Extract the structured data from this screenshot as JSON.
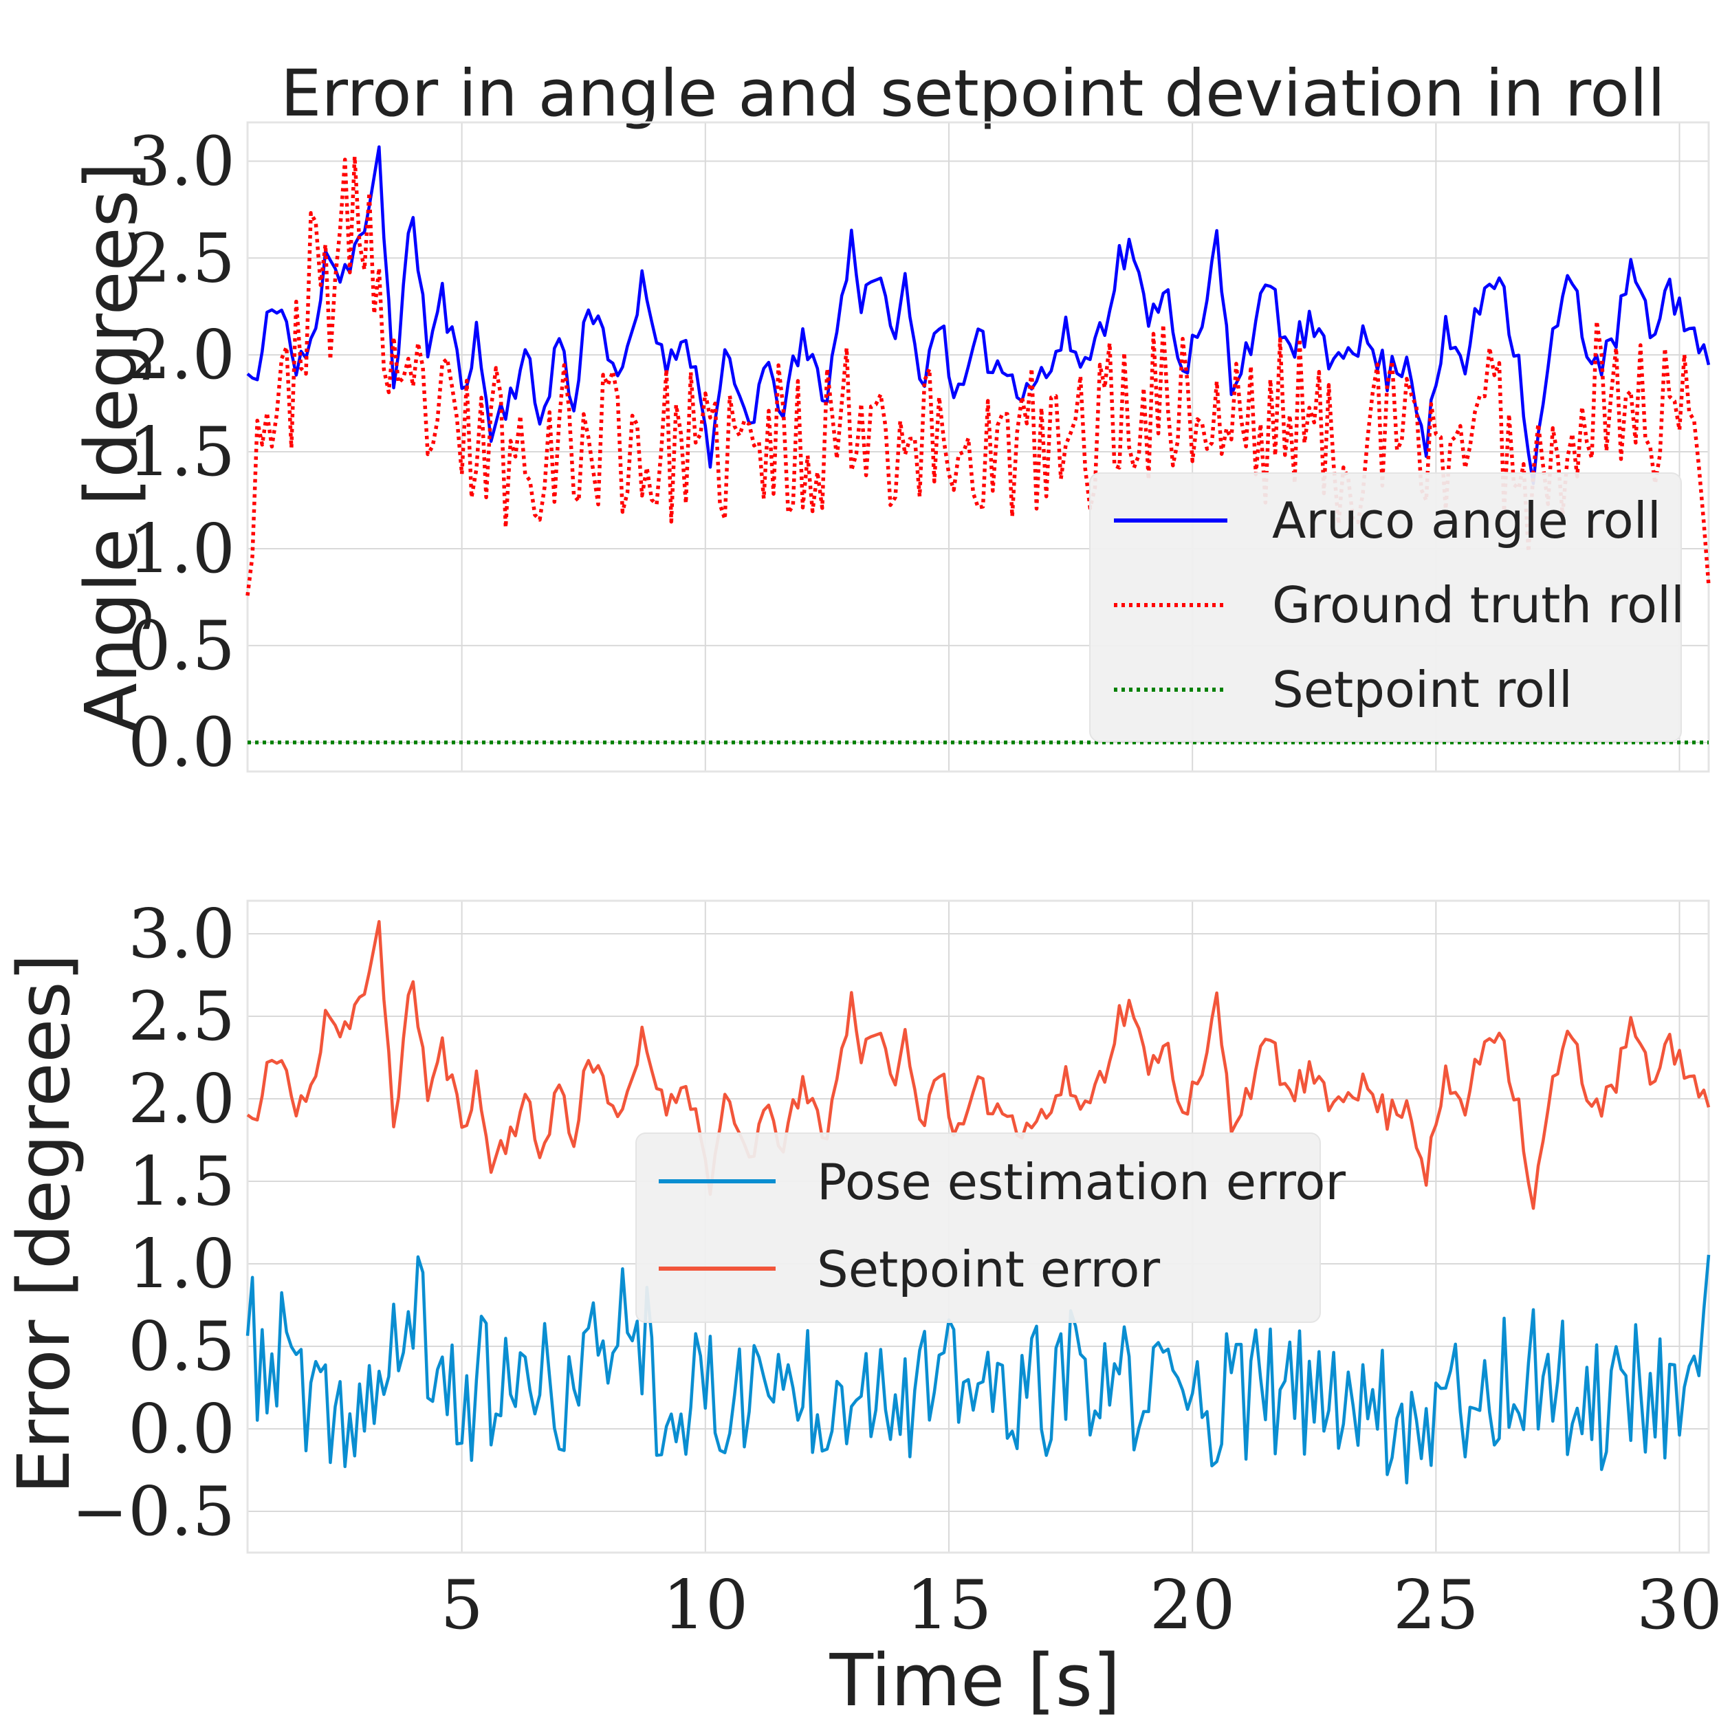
{
  "figure": {
    "title": "Error in angle and setpoint deviation in roll",
    "xlabel": "Time [s]"
  },
  "colors": {
    "aruco": "#0000ff",
    "ground_truth": "#ff0000",
    "setpoint": "#008000",
    "pose_error": "#0a8ed1",
    "setpoint_error": "#f2553a",
    "grid": "#d9d9d9",
    "legend_bg": "#f0f0f0"
  },
  "chart_data": [
    {
      "type": "line",
      "title": "Error in angle and setpoint deviation in roll",
      "xlabel": "",
      "ylabel": "Angle [degrees]",
      "xlim": [
        0.6,
        30.6
      ],
      "ylim": [
        -0.15,
        3.2
      ],
      "xticks": [
        5,
        10,
        15,
        20,
        25,
        30
      ],
      "yticks": [
        0.0,
        0.5,
        1.0,
        1.5,
        2.0,
        2.5,
        3.0
      ],
      "ytick_labels": [
        "0.0",
        "0.5",
        "1.0",
        "1.5",
        "2.0",
        "2.5",
        "3.0"
      ],
      "grid": true,
      "legend_position": "lower-right",
      "x": {
        "start": 0.6,
        "end": 30.6,
        "count": 301
      },
      "series": [
        {
          "name": "Aruco angle roll",
          "style": "solid",
          "color": "#0000ff",
          "anchors_x": [
            0.6,
            0.8,
            1.0,
            1.2,
            1.4,
            1.6,
            2.0,
            2.2,
            2.5,
            2.8,
            3.1,
            3.3,
            3.6,
            4.0,
            4.3,
            4.6,
            5.0,
            5.3,
            5.6,
            6.0,
            6.3,
            6.6,
            7.0,
            7.3,
            7.6,
            8.0,
            8.3,
            8.7,
            9.0,
            9.3,
            9.6,
            10.1,
            10.4,
            10.9,
            11.2,
            11.6,
            12.0,
            12.5,
            13.0,
            13.2,
            13.5,
            13.8,
            14.1,
            14.4,
            14.8,
            15.2,
            15.6,
            16.0,
            16.5,
            17.0,
            17.4,
            17.8,
            18.2,
            18.5,
            18.8,
            19.1,
            19.4,
            19.8,
            20.2,
            20.5,
            20.8,
            21.2,
            21.6,
            22.0,
            22.4,
            22.8,
            23.2,
            23.6,
            24.0,
            24.4,
            24.8,
            25.2,
            25.6,
            26.0,
            26.3,
            26.7,
            27.0,
            27.4,
            27.8,
            28.2,
            28.6,
            29.0,
            29.4,
            29.8,
            30.2,
            30.6
          ],
          "anchors_y": [
            1.9,
            1.85,
            2.15,
            2.3,
            2.15,
            1.9,
            2.1,
            2.6,
            2.4,
            2.55,
            2.7,
            3.02,
            1.88,
            2.75,
            2.02,
            2.3,
            1.85,
            2.1,
            1.6,
            1.8,
            2.0,
            1.65,
            2.1,
            1.7,
            2.3,
            2.05,
            1.85,
            2.35,
            2.1,
            1.95,
            2.15,
            1.5,
            1.95,
            1.65,
            1.9,
            1.75,
            2.05,
            1.8,
            2.6,
            2.3,
            2.45,
            2.1,
            2.35,
            1.85,
            2.2,
            1.75,
            2.05,
            1.95,
            1.85,
            1.9,
            2.1,
            1.95,
            2.2,
            2.5,
            2.55,
            2.1,
            2.4,
            1.95,
            2.1,
            2.6,
            1.85,
            2.1,
            2.35,
            2.0,
            2.15,
            1.95,
            2.1,
            2.05,
            1.9,
            2.0,
            1.55,
            2.1,
            1.95,
            2.35,
            2.45,
            1.95,
            1.35,
            2.1,
            2.4,
            1.95,
            2.0,
            2.45,
            2.1,
            2.35,
            2.15,
            1.9
          ],
          "noise": 0.1,
          "seed": 11
        },
        {
          "name": "Ground truth roll",
          "style": "dotted",
          "color": "#ff0000",
          "anchors_x": [
            0.6,
            0.8,
            1.0,
            1.3,
            1.6,
            2.0,
            2.3,
            2.6,
            2.9,
            3.2,
            3.5,
            3.8,
            4.1,
            4.5,
            4.9,
            5.3,
            5.7,
            6.1,
            6.5,
            7.0,
            7.5,
            8.0,
            8.5,
            9.0,
            9.5,
            10.0,
            10.5,
            11.0,
            11.5,
            12.0,
            12.5,
            13.0,
            13.5,
            14.0,
            14.5,
            15.0,
            15.5,
            16.0,
            16.5,
            17.0,
            17.5,
            18.0,
            18.5,
            19.0,
            19.5,
            20.0,
            20.5,
            21.0,
            21.5,
            22.0,
            22.5,
            23.0,
            23.5,
            24.0,
            24.5,
            25.0,
            25.5,
            26.0,
            26.5,
            27.0,
            27.5,
            28.0,
            28.5,
            29.0,
            29.5,
            30.0,
            30.6
          ],
          "anchors_y": [
            1.1,
            1.55,
            1.85,
            1.6,
            2.1,
            2.4,
            2.35,
            2.6,
            2.8,
            2.5,
            1.8,
            1.55,
            1.8,
            1.65,
            1.55,
            1.5,
            1.6,
            1.45,
            1.55,
            1.6,
            1.5,
            1.65,
            1.55,
            1.45,
            1.6,
            1.4,
            1.55,
            1.45,
            1.55,
            1.5,
            1.65,
            1.7,
            1.75,
            1.55,
            1.6,
            1.5,
            1.55,
            1.45,
            1.5,
            1.55,
            1.5,
            1.65,
            1.7,
            1.75,
            1.8,
            1.75,
            1.6,
            1.7,
            1.55,
            1.8,
            1.55,
            1.5,
            1.55,
            1.6,
            1.55,
            1.5,
            1.6,
            1.75,
            1.55,
            1.35,
            1.55,
            1.75,
            1.8,
            1.75,
            1.7,
            1.75,
            1.2
          ],
          "noise": 0.42,
          "seed": 23
        },
        {
          "name": "Setpoint roll",
          "style": "dotted",
          "color": "#008000",
          "constant": 0.0
        }
      ]
    },
    {
      "type": "line",
      "title": "",
      "xlabel": "Time [s]",
      "ylabel": "Error [degrees]",
      "xlim": [
        0.6,
        30.6
      ],
      "ylim": [
        -0.75,
        3.2
      ],
      "xticks": [
        5,
        10,
        15,
        20,
        25,
        30
      ],
      "xtick_labels": [
        "5",
        "10",
        "15",
        "20",
        "25",
        "30"
      ],
      "yticks": [
        -0.5,
        0.0,
        0.5,
        1.0,
        1.5,
        2.0,
        2.5,
        3.0
      ],
      "ytick_labels": [
        "−0.5",
        "0.0",
        "0.5",
        "1.0",
        "1.5",
        "2.0",
        "2.5",
        "3.0"
      ],
      "grid": true,
      "legend_position": "center",
      "x": {
        "start": 0.6,
        "end": 30.6,
        "count": 301
      },
      "series": [
        {
          "name": "Pose estimation error",
          "style": "solid",
          "color": "#0a8ed1",
          "anchors_x": [
            0.6,
            1.0,
            1.5,
            1.8,
            2.2,
            2.6,
            3.0,
            3.5,
            4.0,
            4.5,
            5.0,
            5.5,
            6.0,
            6.5,
            7.0,
            7.5,
            8.0,
            8.6,
            9.0,
            9.5,
            10.0,
            10.5,
            11.0,
            11.5,
            12.0,
            12.5,
            13.0,
            13.5,
            14.0,
            14.5,
            15.0,
            15.5,
            16.0,
            16.5,
            17.0,
            17.5,
            18.0,
            18.5,
            19.0,
            19.5,
            20.0,
            20.5,
            21.0,
            21.5,
            22.0,
            22.5,
            23.0,
            23.5,
            24.0,
            24.5,
            25.0,
            25.5,
            26.0,
            26.5,
            27.0,
            27.5,
            28.0,
            28.5,
            29.0,
            29.5,
            30.0,
            30.6
          ],
          "anchors_y": [
            0.55,
            0.35,
            0.5,
            0.1,
            0.0,
            0.1,
            0.15,
            0.25,
            0.8,
            0.3,
            0.15,
            0.3,
            0.2,
            0.25,
            0.2,
            0.3,
            0.6,
            0.75,
            0.25,
            0.15,
            0.2,
            0.15,
            0.3,
            0.25,
            0.3,
            0.2,
            0.35,
            0.3,
            0.25,
            0.2,
            0.3,
            0.25,
            0.2,
            0.15,
            0.25,
            0.3,
            0.2,
            0.25,
            0.2,
            0.3,
            0.15,
            0.2,
            0.15,
            0.25,
            0.2,
            0.15,
            0.2,
            0.3,
            0.1,
            0.05,
            0.15,
            0.25,
            0.2,
            0.3,
            0.35,
            0.25,
            0.2,
            0.15,
            0.3,
            0.2,
            0.3,
            0.7
          ],
          "noise": 0.42,
          "seed": 37
        },
        {
          "name": "Setpoint error",
          "style": "solid",
          "color": "#f2553a",
          "copy_of": "Aruco angle roll"
        }
      ]
    }
  ]
}
